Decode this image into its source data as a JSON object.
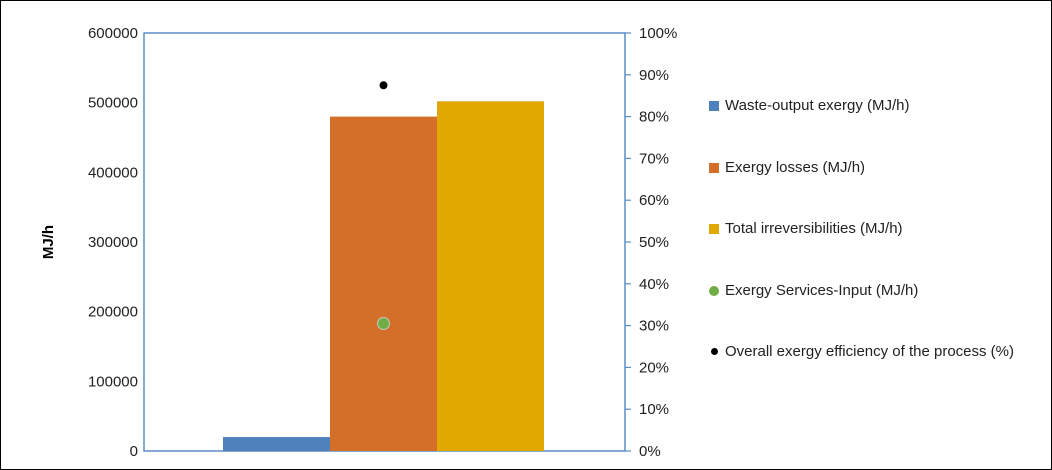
{
  "chart_data": {
    "type": "bar",
    "ylabel": "MJ/h",
    "ylim": [
      0,
      600000
    ],
    "y_ticks": [
      "0",
      "100000",
      "200000",
      "300000",
      "400000",
      "500000",
      "600000"
    ],
    "y2lim": [
      0,
      100
    ],
    "y2_ticks": [
      "0%",
      "10%",
      "20%",
      "30%",
      "40%",
      "50%",
      "60%",
      "70%",
      "80%",
      "90%",
      "100%"
    ],
    "legend_position": "right",
    "series": [
      {
        "name": "Waste-output exergy (MJ/h)",
        "kind": "bar",
        "axis": "left",
        "value": 20000,
        "color": "#4f81bd"
      },
      {
        "name": "Exergy losses (MJ/h)",
        "kind": "bar",
        "axis": "left",
        "value": 480000,
        "color": "#d46f2a"
      },
      {
        "name": "Total irreversibilities (MJ/h)",
        "kind": "bar",
        "axis": "left",
        "value": 502000,
        "color": "#e0a800"
      },
      {
        "name": "Exergy Services-Input (MJ/h)",
        "kind": "point",
        "axis": "left",
        "value": 183000,
        "color": "#70ad47"
      },
      {
        "name": "Overall exergy efficiency of the process (%)",
        "kind": "point",
        "axis": "right",
        "value": 87.5,
        "color": "#000000"
      }
    ]
  }
}
